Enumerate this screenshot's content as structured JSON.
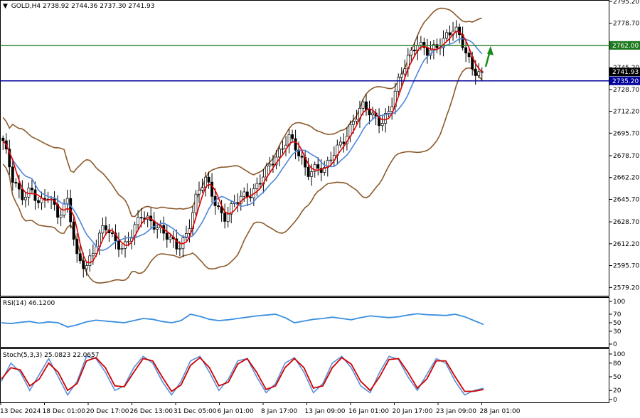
{
  "header": {
    "arrow": "▼",
    "symbol": "GOLD,H4",
    "ohlc": "2738.92 2744.36 2737.30 2741.93"
  },
  "rsi": {
    "label": "RSI(14) 46.1200",
    "value": 46.12
  },
  "stoch": {
    "label": "Stoch(5,3,3) 25.0823 22.0657",
    "k": 25.0823,
    "d": 22.0657
  },
  "colors": {
    "price_line": "#000000",
    "fast_ma": "#e00000",
    "slow_ma": "#4f86d9",
    "bollinger": "#8b5a2b",
    "support_line": "#00009a",
    "resistance_line": "#1e7a1e",
    "rsi_line": "#3a8fe0",
    "stoch_main": "#5b8fd9",
    "stoch_signal": "#d00000",
    "arrow": "#1a8a1a"
  },
  "chart_data": [
    {
      "type": "candlestick",
      "symbol": "GOLD",
      "timeframe": "H4",
      "title": "GOLD,H4",
      "ylim": [
        2574,
        2795.2
      ],
      "y_ticks": [
        2795.2,
        2778.7,
        2745.2,
        2728.7,
        2712.2,
        2695.7,
        2678.7,
        2662.2,
        2645.7,
        2628.7,
        2612.2,
        2595.7,
        2579.2
      ],
      "x_tick_labels": [
        "13 Dec 2024",
        "18 Dec 01:00",
        "20 Dec 17:00",
        "26 Dec 13:00",
        "31 Dec 05:00",
        "6 Jan 01:00",
        "8 Jan 17:00",
        "13 Jan 09:00",
        "16 Jan 01:00",
        "20 Jan 17:00",
        "23 Jan 09:00",
        "28 Jan 01:00"
      ],
      "horizontal_lines": [
        {
          "name": "resistance",
          "value": 2762.0,
          "label": "2762.00"
        },
        {
          "name": "support",
          "value": 2735.2,
          "label": "2735.20"
        }
      ],
      "current_price": {
        "value": 2741.93,
        "label": "2741.93"
      },
      "last_bar": {
        "open": 2738.92,
        "high": 2744.36,
        "low": 2737.3,
        "close": 2741.93
      },
      "close_path": [
        2690,
        2660,
        2648,
        2655,
        2640,
        2648,
        2635,
        2645,
        2600,
        2595,
        2612,
        2625,
        2615,
        2610,
        2620,
        2632,
        2630,
        2625,
        2615,
        2608,
        2622,
        2648,
        2660,
        2645,
        2632,
        2640,
        2648,
        2652,
        2660,
        2670,
        2682,
        2695,
        2680,
        2665,
        2672,
        2668,
        2680,
        2692,
        2705,
        2715,
        2710,
        2705,
        2712,
        2735,
        2755,
        2765,
        2755,
        2760,
        2770,
        2775,
        2760,
        2745,
        2742
      ],
      "annotations": [
        {
          "type": "arrow",
          "direction": "up"
        }
      ]
    },
    {
      "type": "line",
      "title": "RSI(14) 46.1200",
      "ylim": [
        0,
        100
      ],
      "y_ticks": [
        100,
        70,
        50,
        30,
        0
      ],
      "values": [
        50,
        48,
        51,
        53,
        49,
        52,
        50,
        40,
        45,
        52,
        56,
        54,
        52,
        50,
        55,
        60,
        58,
        53,
        50,
        55,
        70,
        65,
        58,
        55,
        57,
        60,
        63,
        66,
        68,
        70,
        62,
        50,
        54,
        58,
        60,
        63,
        60,
        57,
        62,
        66,
        64,
        62,
        64,
        68,
        71,
        69,
        68,
        67,
        70,
        64,
        55,
        46
      ]
    },
    {
      "type": "line",
      "title": "Stoch(5,3,3) 25.0823 22.0657",
      "ylim": [
        0,
        100
      ],
      "y_ticks": [
        100,
        80,
        50,
        20,
        0
      ],
      "series": [
        {
          "values": [
            40,
            80,
            60,
            20,
            55,
            90,
            50,
            10,
            40,
            95,
            90,
            60,
            20,
            30,
            70,
            95,
            80,
            40,
            10,
            40,
            85,
            95,
            60,
            20,
            45,
            85,
            90,
            50,
            15,
            35,
            80,
            92,
            60,
            15,
            35,
            80,
            95,
            70,
            30,
            15,
            60,
            95,
            88,
            50,
            20,
            55,
            90,
            80,
            40,
            10,
            20,
            25
          ]
        },
        {
          "values": [
            45,
            70,
            65,
            30,
            45,
            80,
            60,
            20,
            35,
            85,
            92,
            70,
            30,
            28,
            60,
            90,
            85,
            50,
            18,
            32,
            75,
            92,
            70,
            30,
            38,
            78,
            90,
            60,
            22,
            30,
            70,
            90,
            70,
            25,
            30,
            70,
            92,
            78,
            40,
            20,
            50,
            88,
            90,
            60,
            25,
            45,
            85,
            85,
            50,
            18,
            18,
            22
          ]
        }
      ]
    }
  ]
}
